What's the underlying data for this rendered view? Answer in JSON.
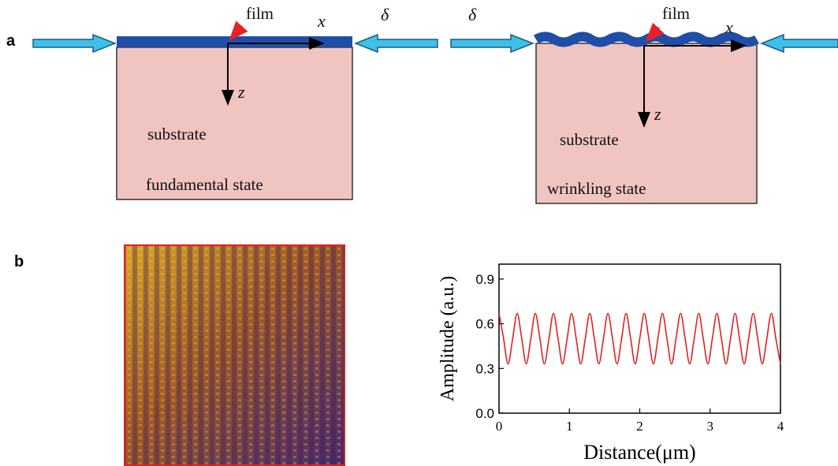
{
  "panel_a": {
    "label": "a",
    "left": {
      "film": "film",
      "x_axis": "x",
      "z_axis": "z",
      "substrate": "substrate",
      "state": "fundamental state"
    },
    "delta_left": "δ",
    "delta_right": "δ",
    "right": {
      "film": "film",
      "x_axis": "x",
      "z_axis": "z",
      "substrate": "substrate",
      "state": "wrinkling state"
    }
  },
  "panel_b": {
    "label": "b"
  },
  "chart_data": {
    "type": "line",
    "xlabel": "Distance(μm)",
    "ylabel": "Amplitude (a.u.)",
    "x": [
      0,
      0.065,
      0.129,
      0.194,
      0.258,
      0.323,
      0.387,
      0.452,
      0.516,
      0.581,
      0.645,
      0.71,
      0.774,
      0.839,
      0.903,
      0.968,
      1.032,
      1.097,
      1.161,
      1.226,
      1.29,
      1.355,
      1.419,
      1.484,
      1.548,
      1.613,
      1.677,
      1.742,
      1.806,
      1.871,
      1.935,
      2,
      2.065,
      2.129,
      2.194,
      2.258,
      2.323,
      2.387,
      2.452,
      2.516,
      2.581,
      2.645,
      2.71,
      2.774,
      2.839,
      2.903,
      2.968,
      3.032,
      3.097,
      3.161,
      3.226,
      3.29,
      3.355,
      3.419,
      3.484,
      3.548,
      3.613,
      3.677,
      3.742,
      3.806,
      3.871,
      3.935,
      4
    ],
    "series": [
      {
        "color": "#e02020",
        "values": [
          0.67,
          0.5,
          0.33,
          0.5,
          0.67,
          0.5,
          0.33,
          0.5,
          0.67,
          0.5,
          0.33,
          0.5,
          0.67,
          0.5,
          0.33,
          0.5,
          0.67,
          0.5,
          0.33,
          0.5,
          0.67,
          0.5,
          0.33,
          0.5,
          0.67,
          0.5,
          0.33,
          0.5,
          0.67,
          0.5,
          0.33,
          0.5,
          0.67,
          0.5,
          0.33,
          0.5,
          0.67,
          0.5,
          0.33,
          0.5,
          0.67,
          0.5,
          0.33,
          0.5,
          0.67,
          0.5,
          0.33,
          0.5,
          0.67,
          0.5,
          0.33,
          0.5,
          0.67,
          0.5,
          0.33,
          0.5,
          0.67,
          0.5,
          0.33,
          0.5,
          0.67,
          0.5,
          0.33
        ]
      }
    ],
    "xlim": [
      0,
      4
    ],
    "xticks": [
      0,
      1,
      2,
      3,
      4
    ],
    "ylim": [
      0,
      1
    ],
    "yticks": [
      {
        "value": 0,
        "label": "0.0"
      },
      0.3,
      0.6,
      0.9
    ],
    "grid": false
  }
}
